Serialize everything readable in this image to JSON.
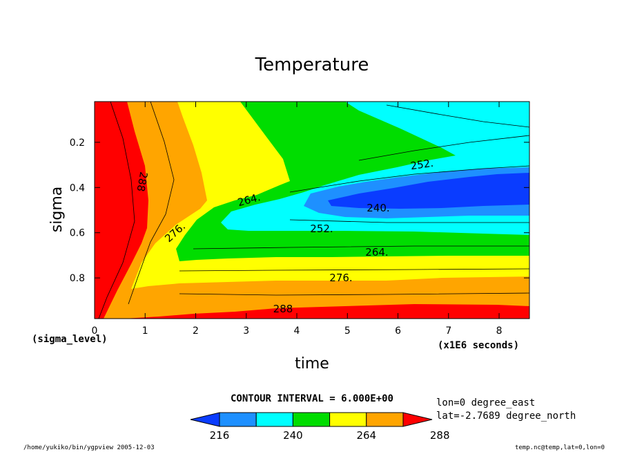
{
  "chart_data": {
    "type": "contour",
    "title": "Temperature",
    "xlabel": "time",
    "ylabel": "sigma",
    "x_unit_label": "(x1E6 seconds)",
    "y_unit_label": "(sigma_level)",
    "xlim": [
      0,
      8.6
    ],
    "ylim": [
      0.98,
      0.02
    ],
    "xticks": [
      "0",
      "1",
      "2",
      "3",
      "4",
      "5",
      "6",
      "7",
      "8"
    ],
    "yticks": [
      "0.2",
      "0.4",
      "0.6",
      "0.8"
    ],
    "contour_interval_text": "CONTOUR INTERVAL = 6.000E+00",
    "contour_labels": [
      "288",
      "276.",
      "264.",
      "252.",
      "240."
    ],
    "colorbar": {
      "boundaries": [
        "216",
        "240",
        "264",
        "288"
      ],
      "colors": [
        "#0a3cff",
        "#1e90ff",
        "#00ffff",
        "#00dd00",
        "#ffff00",
        "#ffa500",
        "#ff0000"
      ]
    },
    "info_lines": [
      "lon=0 degree_east",
      "lat=-2.7689 degree_north"
    ]
  },
  "footer": {
    "left": "/home/yukiko/bin/ygpview  2005-12-03",
    "right": "temp.nc@temp,lat=0,lon=0"
  }
}
